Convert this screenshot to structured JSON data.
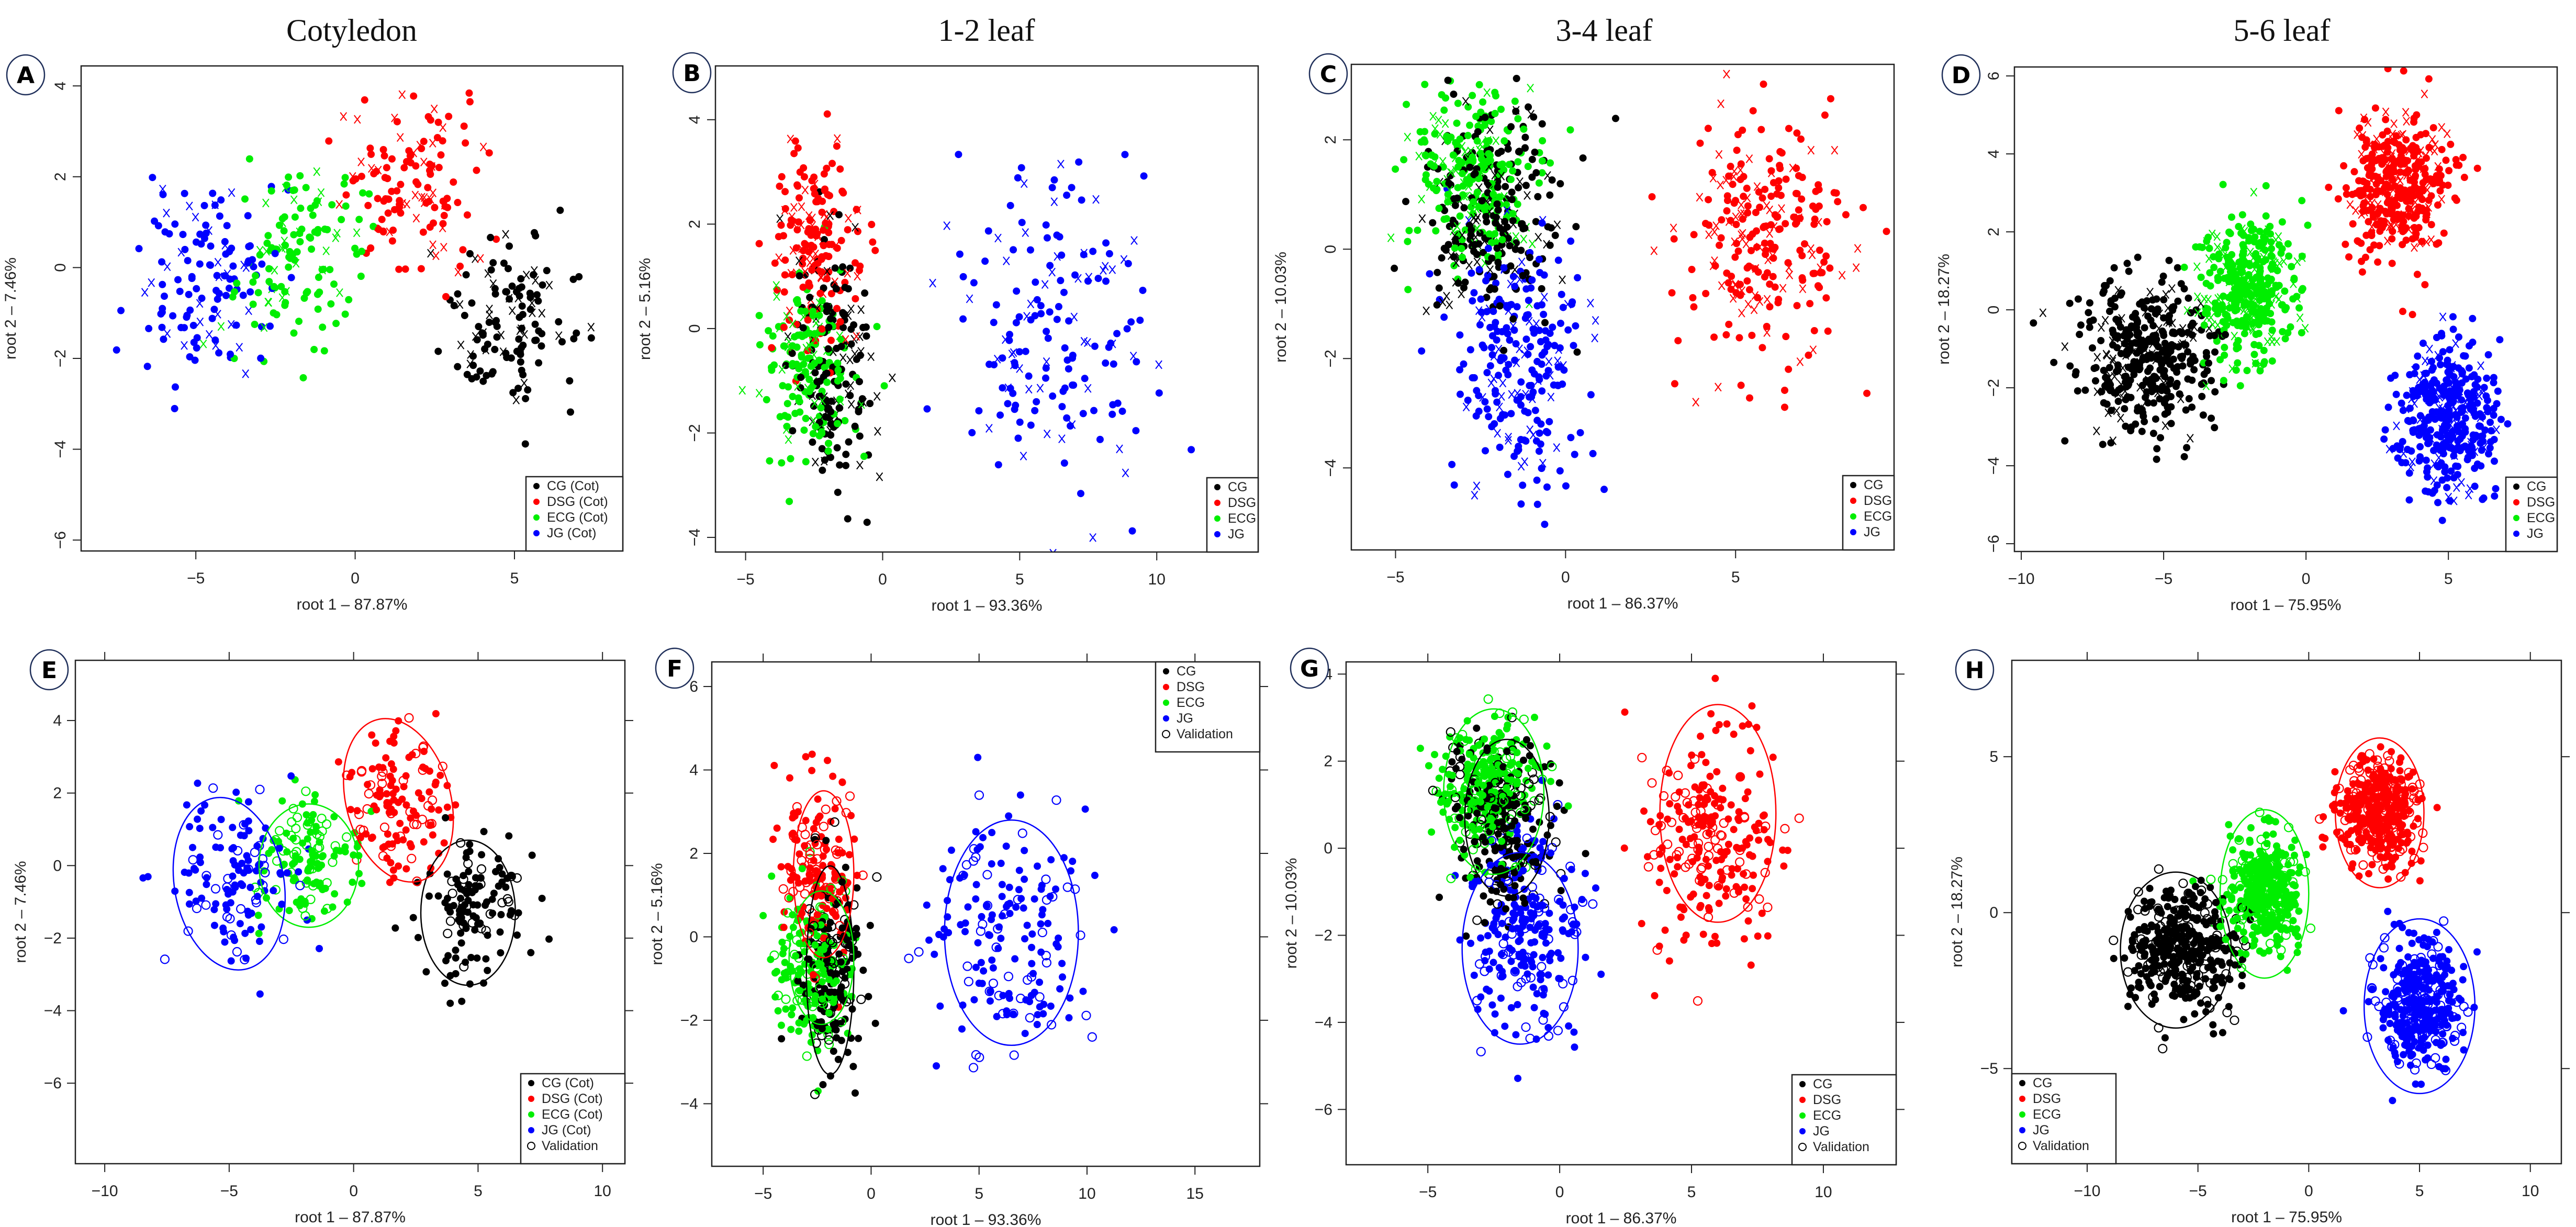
{
  "colors": {
    "CG": "#000000",
    "DSG": "#ff0000",
    "ECG": "#00ee00",
    "JG": "#0000ff",
    "Validation": "#000000"
  },
  "column_titles": [
    "Cotyledon",
    "1-2 leaf",
    "3-4 leaf",
    "5-6 leaf"
  ],
  "chart_data": [
    {
      "id": "A",
      "type": "scatter",
      "marker_validation": "cross",
      "xlabel": "root 1 – 87.87%",
      "ylabel": "root 2 – 7.46%",
      "xlim": [
        -8.6,
        8.4
      ],
      "ylim": [
        -6.24,
        4.44
      ],
      "xticks": [
        -5,
        0,
        5
      ],
      "yticks": [
        -6,
        -4,
        -2,
        0,
        2,
        4
      ],
      "legend": {
        "position": "bottom-right",
        "entries": [
          "CG (Cot)",
          "DSG (Cot)",
          "ECG (Cot)",
          "JG (Cot)"
        ]
      },
      "groups": [
        {
          "name": "CG",
          "mean": [
            4.8,
            -1.3
          ],
          "sd": [
            1.0,
            1.0
          ],
          "n": 130
        },
        {
          "name": "DSG",
          "mean": [
            1.8,
            1.8
          ],
          "sd": [
            1.1,
            1.0
          ],
          "n": 130
        },
        {
          "name": "ECG",
          "mean": [
            -1.8,
            0.2
          ],
          "sd": [
            1.0,
            0.9
          ],
          "n": 130
        },
        {
          "name": "JG",
          "mean": [
            -4.8,
            -0.4
          ],
          "sd": [
            1.1,
            1.2
          ],
          "n": 130
        }
      ]
    },
    {
      "id": "B",
      "type": "scatter",
      "marker_validation": "cross",
      "xlabel": "root 1 – 93.36%",
      "ylabel": "root 2 – 5.16%",
      "xlim": [
        -6.1,
        13.7
      ],
      "ylim": [
        -4.28,
        5.03
      ],
      "xticks": [
        -5,
        0,
        5,
        10
      ],
      "yticks": [
        -4,
        -2,
        0,
        2,
        4
      ],
      "legend": {
        "position": "bottom-right",
        "entries": [
          "CG",
          "DSG",
          "ECG",
          "JG"
        ]
      },
      "groups": [
        {
          "name": "CG",
          "mean": [
            -1.8,
            -0.8
          ],
          "sd": [
            0.7,
            1.1
          ],
          "n": 170
        },
        {
          "name": "DSG",
          "mean": [
            -2.5,
            1.6
          ],
          "sd": [
            0.8,
            1.0
          ],
          "n": 170
        },
        {
          "name": "ECG",
          "mean": [
            -2.7,
            -0.8
          ],
          "sd": [
            0.9,
            0.9
          ],
          "n": 170
        },
        {
          "name": "JG",
          "mean": [
            6.5,
            0.0
          ],
          "sd": [
            1.8,
            1.5
          ],
          "n": 170
        }
      ]
    },
    {
      "id": "C",
      "type": "scatter",
      "marker_validation": "cross",
      "xlabel": "root 1 – 86.37%",
      "ylabel": "root 2 – 10.03%",
      "xlim": [
        -6.3,
        9.66
      ],
      "ylim": [
        -5.5,
        3.38
      ],
      "xticks": [
        -5,
        0,
        5
      ],
      "yticks": [
        -4,
        -2,
        0,
        2
      ],
      "legend": {
        "position": "bottom-right",
        "entries": [
          "CG",
          "DSG",
          "ECG",
          "JG"
        ]
      },
      "groups": [
        {
          "name": "CG",
          "mean": [
            -2.2,
            0.6
          ],
          "sd": [
            1.0,
            1.0
          ],
          "n": 250
        },
        {
          "name": "DSG",
          "mean": [
            5.8,
            0.2
          ],
          "sd": [
            1.3,
            1.2
          ],
          "n": 250
        },
        {
          "name": "ECG",
          "mean": [
            -2.7,
            1.4
          ],
          "sd": [
            0.9,
            0.8
          ],
          "n": 250
        },
        {
          "name": "JG",
          "mean": [
            -1.4,
            -2.0
          ],
          "sd": [
            1.0,
            1.2
          ],
          "n": 250
        }
      ]
    },
    {
      "id": "D",
      "type": "scatter",
      "marker_validation": "cross",
      "xlabel": "root 1 – 75.95%",
      "ylabel": "root 2 – 18.27%",
      "xlim": [
        -10.24,
        8.82
      ],
      "ylim": [
        -6.2,
        6.23
      ],
      "xticks": [
        -10,
        -5,
        0,
        5
      ],
      "yticks": [
        -6,
        -4,
        -2,
        0,
        2,
        4,
        6
      ],
      "legend": {
        "position": "bottom-right",
        "entries": [
          "CG",
          "DSG",
          "ECG",
          "JG"
        ]
      },
      "groups": [
        {
          "name": "CG",
          "mean": [
            -5.7,
            -1.2
          ],
          "sd": [
            1.2,
            1.0
          ],
          "n": 400
        },
        {
          "name": "DSG",
          "mean": [
            3.2,
            3.2
          ],
          "sd": [
            0.9,
            0.9
          ],
          "n": 400
        },
        {
          "name": "ECG",
          "mean": [
            -2.0,
            0.6
          ],
          "sd": [
            0.8,
            0.9
          ],
          "n": 400
        },
        {
          "name": "JG",
          "mean": [
            5.0,
            -2.8
          ],
          "sd": [
            0.9,
            1.0
          ],
          "n": 400
        }
      ]
    },
    {
      "id": "E",
      "type": "scatter",
      "marker_validation": "open-circle",
      "xlabel": "root 1 – 87.87%",
      "ylabel": "root 2 – 7.46%",
      "xlim": [
        -11.18,
        10.9
      ],
      "ylim": [
        -8.22,
        5.66
      ],
      "xticks": [
        -10,
        -5,
        0,
        5,
        10
      ],
      "yticks": [
        -6,
        -4,
        -2,
        0,
        2,
        4
      ],
      "legend": {
        "position": "bottom-right",
        "entries": [
          "CG (Cot)",
          "DSG (Cot)",
          "ECG (Cot)",
          "JG (Cot)",
          "Validation"
        ]
      },
      "groups": [
        {
          "name": "CG",
          "mean": [
            4.8,
            -1.3
          ],
          "sd": [
            1.0,
            1.0
          ],
          "n": 130,
          "ellipse": {
            "center": [
              4.6,
              -1.3
            ],
            "radii": [
              1.9,
              2.0
            ],
            "angle": 0
          }
        },
        {
          "name": "DSG",
          "mean": [
            1.8,
            1.8
          ],
          "sd": [
            1.1,
            1.0
          ],
          "n": 130,
          "ellipse": {
            "center": [
              1.8,
              1.8
            ],
            "radii": [
              2.1,
              2.3
            ],
            "angle": -15
          }
        },
        {
          "name": "ECG",
          "mean": [
            -1.8,
            0.2
          ],
          "sd": [
            1.0,
            0.9
          ],
          "n": 130,
          "ellipse": {
            "center": [
              -1.8,
              0.0
            ],
            "radii": [
              2.0,
              1.7
            ],
            "angle": 0
          }
        },
        {
          "name": "JG",
          "mean": [
            -4.8,
            -0.4
          ],
          "sd": [
            1.1,
            1.2
          ],
          "n": 130,
          "ellipse": {
            "center": [
              -5.0,
              -0.5
            ],
            "radii": [
              2.2,
              2.4
            ],
            "angle": -10
          }
        }
      ]
    },
    {
      "id": "F",
      "type": "scatter",
      "marker_validation": "open-circle",
      "xlabel": "root 1 – 93.36%",
      "ylabel": "root 2 – 5.16%",
      "xlim": [
        -7.38,
        18.0
      ],
      "ylim": [
        -5.5,
        6.59
      ],
      "xticks": [
        -5,
        0,
        5,
        10,
        15
      ],
      "yticks": [
        -4,
        -2,
        0,
        2,
        4,
        6
      ],
      "legend": {
        "position": "top-right",
        "entries": [
          "CG",
          "DSG",
          "ECG",
          "JG",
          "Validation"
        ]
      },
      "groups": [
        {
          "name": "CG",
          "mean": [
            -1.8,
            -0.8
          ],
          "sd": [
            0.7,
            1.1
          ],
          "n": 170,
          "ellipse": {
            "center": [
              -1.9,
              -0.8
            ],
            "radii": [
              1.1,
              2.5
            ],
            "angle": 0
          }
        },
        {
          "name": "DSG",
          "mean": [
            -2.5,
            1.6
          ],
          "sd": [
            0.8,
            1.0
          ],
          "n": 170,
          "ellipse": {
            "center": [
              -2.2,
              1.5
            ],
            "radii": [
              1.4,
              2.0
            ],
            "angle": 0
          }
        },
        {
          "name": "ECG",
          "mean": [
            -2.7,
            -0.8
          ],
          "sd": [
            0.9,
            0.9
          ],
          "n": 170,
          "ellipse": {
            "center": [
              -2.3,
              -0.5
            ],
            "radii": [
              1.5,
              1.6
            ],
            "angle": 0
          }
        },
        {
          "name": "JG",
          "mean": [
            6.5,
            0.0
          ],
          "sd": [
            1.8,
            1.5
          ],
          "n": 170,
          "ellipse": {
            "center": [
              6.5,
              0.1
            ],
            "radii": [
              3.1,
              2.7
            ],
            "angle": 0
          }
        }
      ]
    },
    {
      "id": "G",
      "type": "scatter",
      "marker_validation": "open-circle",
      "xlabel": "root 1 – 86.37%",
      "ylabel": "root 2 – 10.03%",
      "xlim": [
        -8.1,
        12.76
      ],
      "ylim": [
        -7.27,
        4.28
      ],
      "xticks": [
        -5,
        0,
        5,
        10
      ],
      "yticks": [
        -6,
        -4,
        -2,
        0,
        2,
        4
      ],
      "legend": {
        "position": "bottom-right",
        "entries": [
          "CG",
          "DSG",
          "ECG",
          "JG",
          "Validation"
        ]
      },
      "groups": [
        {
          "name": "CG",
          "mean": [
            -2.2,
            0.6
          ],
          "sd": [
            1.0,
            1.0
          ],
          "n": 250,
          "ellipse": {
            "center": [
              -2.0,
              0.7
            ],
            "radii": [
              1.6,
              1.8
            ],
            "angle": 0
          }
        },
        {
          "name": "DSG",
          "mean": [
            5.8,
            0.2
          ],
          "sd": [
            1.3,
            1.2
          ],
          "n": 250,
          "ellipse": {
            "center": [
              6.0,
              0.8
            ],
            "radii": [
              2.2,
              2.5
            ],
            "angle": 0
          }
        },
        {
          "name": "ECG",
          "mean": [
            -2.7,
            1.4
          ],
          "sd": [
            0.9,
            0.8
          ],
          "n": 250,
          "ellipse": {
            "center": [
              -2.5,
              1.3
            ],
            "radii": [
              1.9,
              1.9
            ],
            "angle": 0
          }
        },
        {
          "name": "JG",
          "mean": [
            -1.4,
            -2.0
          ],
          "sd": [
            1.0,
            1.2
          ],
          "n": 250,
          "ellipse": {
            "center": [
              -1.5,
              -2.3
            ],
            "radii": [
              2.2,
              2.2
            ],
            "angle": 0
          }
        }
      ]
    },
    {
      "id": "H",
      "type": "scatter",
      "marker_validation": "open-circle",
      "xlabel": "root 1 – 75.95%",
      "ylabel": "root 2 – 18.27%",
      "xlim": [
        -13.4,
        11.4
      ],
      "ylim": [
        -8.05,
        8.09
      ],
      "xticks": [
        -10,
        -5,
        0,
        5,
        10
      ],
      "yticks": [
        -5,
        0,
        5
      ],
      "legend": {
        "position": "bottom-left",
        "entries": [
          "CG",
          "DSG",
          "ECG",
          "JG",
          "Validation"
        ]
      },
      "groups": [
        {
          "name": "CG",
          "mean": [
            -5.7,
            -1.2
          ],
          "sd": [
            1.2,
            1.0
          ],
          "n": 400,
          "ellipse": {
            "center": [
              -6.0,
              -1.2
            ],
            "radii": [
              2.5,
              2.5
            ],
            "angle": 0
          }
        },
        {
          "name": "DSG",
          "mean": [
            3.2,
            3.2
          ],
          "sd": [
            0.9,
            0.9
          ],
          "n": 400,
          "ellipse": {
            "center": [
              3.2,
              3.2
            ],
            "radii": [
              2.0,
              2.4
            ],
            "angle": 0
          }
        },
        {
          "name": "ECG",
          "mean": [
            -2.0,
            0.6
          ],
          "sd": [
            0.8,
            0.9
          ],
          "n": 400,
          "ellipse": {
            "center": [
              -2.0,
              0.6
            ],
            "radii": [
              2.0,
              2.7
            ],
            "angle": 0
          }
        },
        {
          "name": "JG",
          "mean": [
            5.0,
            -2.8
          ],
          "sd": [
            0.9,
            1.0
          ],
          "n": 400,
          "ellipse": {
            "center": [
              5.0,
              -3.0
            ],
            "radii": [
              2.5,
              2.8
            ],
            "angle": 0
          }
        }
      ]
    }
  ]
}
